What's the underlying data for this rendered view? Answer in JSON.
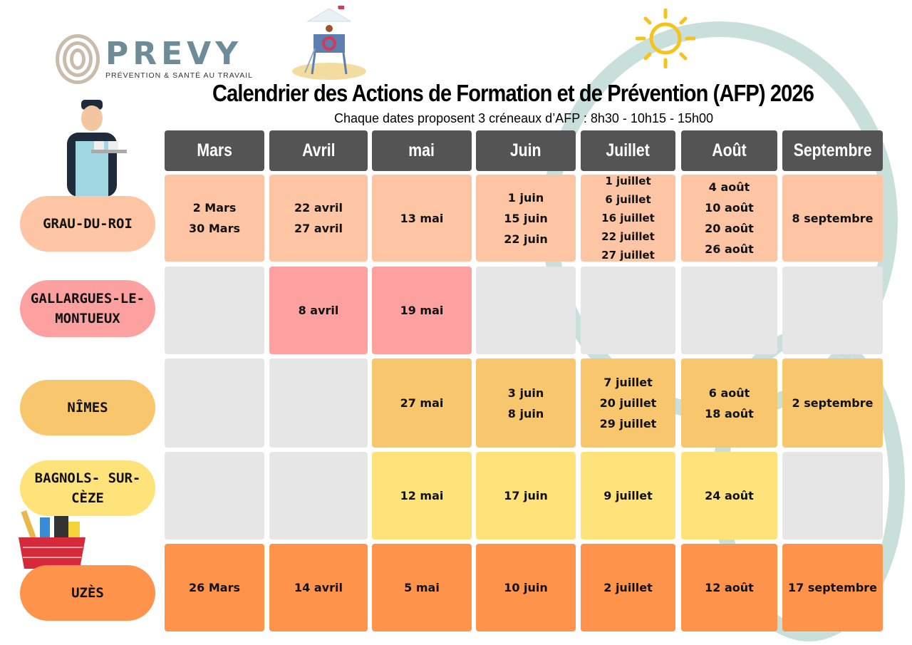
{
  "logo": {
    "brand": "PREVY",
    "tagline": "PRÉVENTION & SANTÉ AU TRAVAIL"
  },
  "title": "Calendrier des Actions de Formation et de Prévention (AFP) 2026",
  "subtitle": "Chaque dates proposent 3 créneaux d’AFP : 8h30 - 10h15 - 15h00",
  "months": [
    "Mars",
    "Avril",
    "mai",
    "Juin",
    "Juillet",
    "Août",
    "Septembre"
  ],
  "colors": {
    "header": "#545454",
    "empty": "#e6e6e6",
    "accent_leaf": "#c3ddd6"
  },
  "rows": [
    {
      "city": "GRAU-DU-ROI",
      "color": "#fec5a5",
      "cells": [
        [
          "2 Mars",
          "30 Mars"
        ],
        [
          "22 avril",
          "27 avril"
        ],
        [
          "13 mai"
        ],
        [
          "1 juin",
          "15 juin",
          "22 juin"
        ],
        [
          "1 juillet",
          "6 juillet",
          "16 juillet",
          "22 juillet",
          "27 juillet"
        ],
        [
          "4 août",
          "10 août",
          "20 août",
          "26 août"
        ],
        [
          "8 septembre"
        ]
      ]
    },
    {
      "city": "GALLARGUES-LE-MONTUEUX",
      "color": "#fda0a0",
      "cells": [
        [],
        [
          "8 avril"
        ],
        [
          "19 mai"
        ],
        [],
        [],
        [],
        []
      ]
    },
    {
      "city": "NÎMES",
      "color": "#f8c76d",
      "cells": [
        [],
        [],
        [
          "27 mai"
        ],
        [
          "3 juin",
          "8 juin"
        ],
        [
          "7 juillet",
          "20 juillet",
          "29 juillet"
        ],
        [
          "6 août",
          "18 août"
        ],
        [
          "2 septembre"
        ]
      ]
    },
    {
      "city": "BAGNOLS- SUR-CÈZE",
      "color": "#fee27a",
      "cells": [
        [],
        [],
        [
          "12 mai"
        ],
        [
          "17 juin"
        ],
        [
          "9 juillet"
        ],
        [
          "24 août"
        ],
        []
      ]
    },
    {
      "city": "UZÈS",
      "color": "#fe934c",
      "cells": [
        [
          "26 Mars"
        ],
        [
          "14 avril"
        ],
        [
          "5 mai"
        ],
        [
          "10 juin"
        ],
        [
          "2 juillet"
        ],
        [
          "12 août"
        ],
        [
          "17 septembre"
        ]
      ]
    }
  ]
}
